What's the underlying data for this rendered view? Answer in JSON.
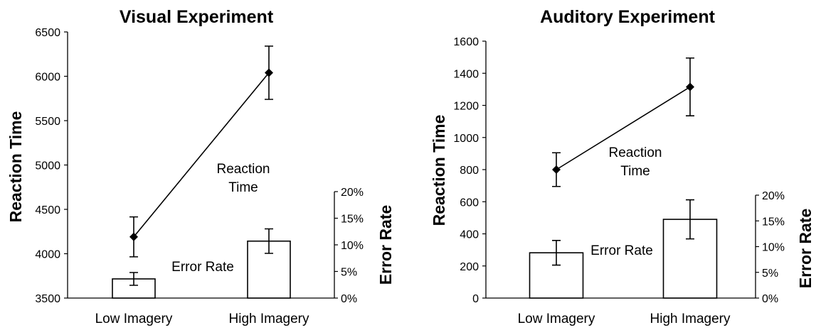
{
  "chart_data": [
    {
      "type": "line",
      "title": "Visual Experiment",
      "categories": [
        "Low Imagery",
        "High Imagery"
      ],
      "y_left": {
        "label": "Reaction Time",
        "range": [
          3500,
          6500
        ],
        "ticks": [
          "3500",
          "4000",
          "4500",
          "5000",
          "5500",
          "6000",
          "6500"
        ]
      },
      "y_right": {
        "label": "Error Rate",
        "range": [
          0,
          20
        ],
        "ticks": [
          "0%",
          "5%",
          "10%",
          "15%",
          "20%"
        ]
      },
      "reaction_time": {
        "label": "Reaction Time",
        "values": [
          4190,
          6040
        ],
        "errors": [
          225,
          300
        ]
      },
      "error_rate": {
        "label": "Error Rate",
        "values": [
          3.6,
          10.7
        ],
        "errors": [
          1.2,
          2.3
        ]
      },
      "grid": false,
      "legend": "none"
    },
    {
      "type": "line",
      "title": "Auditory Experiment",
      "categories": [
        "Low Imagery",
        "High Imagery"
      ],
      "y_left": {
        "label": "Reaction Time",
        "range": [
          0,
          1600
        ],
        "ticks": [
          "0",
          "200",
          "400",
          "600",
          "800",
          "1000",
          "1200",
          "1400",
          "1600"
        ]
      },
      "y_right": {
        "label": "Error Rate",
        "range": [
          0,
          20
        ],
        "ticks": [
          "0%",
          "5%",
          "10%",
          "15%",
          "20%"
        ]
      },
      "reaction_time": {
        "label": "Reaction Time",
        "values": [
          800,
          1315
        ],
        "errors": [
          105,
          180
        ]
      },
      "error_rate": {
        "label": "Error Rate",
        "values": [
          8.8,
          15.3
        ],
        "errors": [
          2.4,
          3.8
        ]
      },
      "grid": false,
      "legend": "none"
    }
  ]
}
